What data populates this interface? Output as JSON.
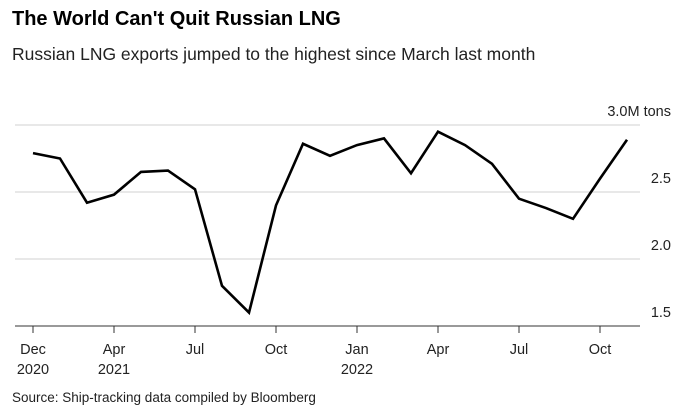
{
  "chart_data": {
    "type": "line",
    "title": "The World Can't Quit Russian LNG",
    "subtitle": "Russian LNG exports jumped to the highest since March last month",
    "source": "Source: Ship-tracking data compiled by Bloomberg",
    "categories": [
      "Dec 2020",
      null,
      null,
      "Apr 2021",
      null,
      null,
      "Jul",
      null,
      null,
      "Oct",
      null,
      null,
      "Jan 2022",
      null,
      null,
      "Apr",
      null,
      null,
      "Jul",
      null,
      null,
      "Oct",
      null
    ],
    "series": [
      {
        "name": "Russian LNG exports",
        "color": "#000000",
        "values": [
          2.79,
          2.75,
          2.42,
          2.48,
          2.65,
          2.66,
          2.52,
          1.8,
          1.6,
          2.4,
          2.86,
          2.77,
          2.85,
          2.9,
          2.64,
          2.95,
          2.85,
          2.71,
          2.45,
          2.38,
          2.3,
          2.6,
          2.89
        ]
      }
    ],
    "ylim": [
      1.5,
      3.0
    ],
    "yticks": [
      1.5,
      {
        "value": 2,
        "label": "2.0"
      },
      2.5,
      {
        "value": 3,
        "label": "3.0M tons"
      }
    ],
    "grid": true
  }
}
